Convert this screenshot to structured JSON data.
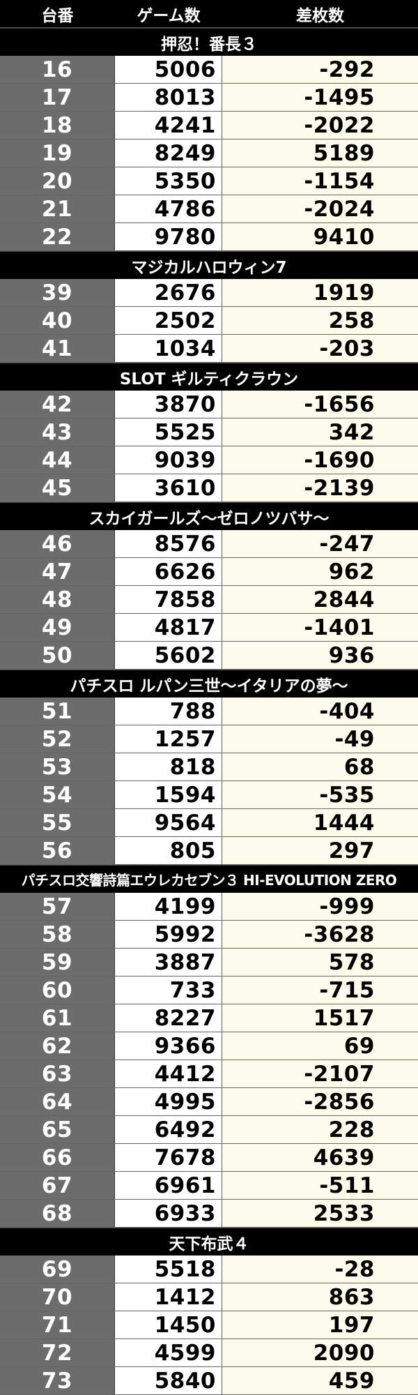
{
  "header": {
    "col1": "台番",
    "col2": "ゲーム数",
    "col3": "差枚数"
  },
  "groups": [
    {
      "title": "押忍！番長３",
      "rows": [
        {
          "num": "16",
          "games": "5006",
          "diff": "-292"
        },
        {
          "num": "17",
          "games": "8013",
          "diff": "-1495"
        },
        {
          "num": "18",
          "games": "4241",
          "diff": "-2022"
        },
        {
          "num": "19",
          "games": "8249",
          "diff": "5189"
        },
        {
          "num": "20",
          "games": "5350",
          "diff": "-1154"
        },
        {
          "num": "21",
          "games": "4786",
          "diff": "-2024"
        },
        {
          "num": "22",
          "games": "9780",
          "diff": "9410"
        }
      ]
    },
    {
      "title": "マジカルハロウィン7",
      "rows": [
        {
          "num": "39",
          "games": "2676",
          "diff": "1919"
        },
        {
          "num": "40",
          "games": "2502",
          "diff": "258"
        },
        {
          "num": "41",
          "games": "1034",
          "diff": "-203"
        }
      ]
    },
    {
      "title": "SLOT ギルティクラウン",
      "rows": [
        {
          "num": "42",
          "games": "3870",
          "diff": "-1656"
        },
        {
          "num": "43",
          "games": "5525",
          "diff": "342"
        },
        {
          "num": "44",
          "games": "9039",
          "diff": "-1690"
        },
        {
          "num": "45",
          "games": "3610",
          "diff": "-2139"
        }
      ]
    },
    {
      "title": "スカイガールズ～ゼロノツバサ～",
      "rows": [
        {
          "num": "46",
          "games": "8576",
          "diff": "-247"
        },
        {
          "num": "47",
          "games": "6626",
          "diff": "962"
        },
        {
          "num": "48",
          "games": "7858",
          "diff": "2844"
        },
        {
          "num": "49",
          "games": "4817",
          "diff": "-1401"
        },
        {
          "num": "50",
          "games": "5602",
          "diff": "936"
        }
      ]
    },
    {
      "title": "パチスロ ルパン三世～イタリアの夢～",
      "rows": [
        {
          "num": "51",
          "games": "788",
          "diff": "-404"
        },
        {
          "num": "52",
          "games": "1257",
          "diff": "-49"
        },
        {
          "num": "53",
          "games": "818",
          "diff": "68"
        },
        {
          "num": "54",
          "games": "1594",
          "diff": "-535"
        },
        {
          "num": "55",
          "games": "9564",
          "diff": "1444"
        },
        {
          "num": "56",
          "games": "805",
          "diff": "297"
        }
      ]
    },
    {
      "title": "パチスロ交響詩篇エウレカセブン３ HI-EVOLUTION ZERO",
      "long": true,
      "rows": [
        {
          "num": "57",
          "games": "4199",
          "diff": "-999"
        },
        {
          "num": "58",
          "games": "5992",
          "diff": "-3628"
        },
        {
          "num": "59",
          "games": "3887",
          "diff": "578"
        },
        {
          "num": "60",
          "games": "733",
          "diff": "-715"
        },
        {
          "num": "61",
          "games": "8227",
          "diff": "1517"
        },
        {
          "num": "62",
          "games": "9366",
          "diff": "69"
        },
        {
          "num": "63",
          "games": "4412",
          "diff": "-2107"
        },
        {
          "num": "64",
          "games": "4995",
          "diff": "-2856"
        },
        {
          "num": "65",
          "games": "6492",
          "diff": "228"
        },
        {
          "num": "66",
          "games": "7678",
          "diff": "4639"
        },
        {
          "num": "67",
          "games": "6961",
          "diff": "-511"
        },
        {
          "num": "68",
          "games": "6933",
          "diff": "2533"
        }
      ]
    },
    {
      "title": "天下布武４",
      "rows": [
        {
          "num": "69",
          "games": "5518",
          "diff": "-28"
        },
        {
          "num": "70",
          "games": "1412",
          "diff": "863"
        },
        {
          "num": "71",
          "games": "1450",
          "diff": "197"
        },
        {
          "num": "72",
          "games": "4599",
          "diff": "2090"
        },
        {
          "num": "73",
          "games": "5840",
          "diff": "459"
        }
      ]
    }
  ]
}
